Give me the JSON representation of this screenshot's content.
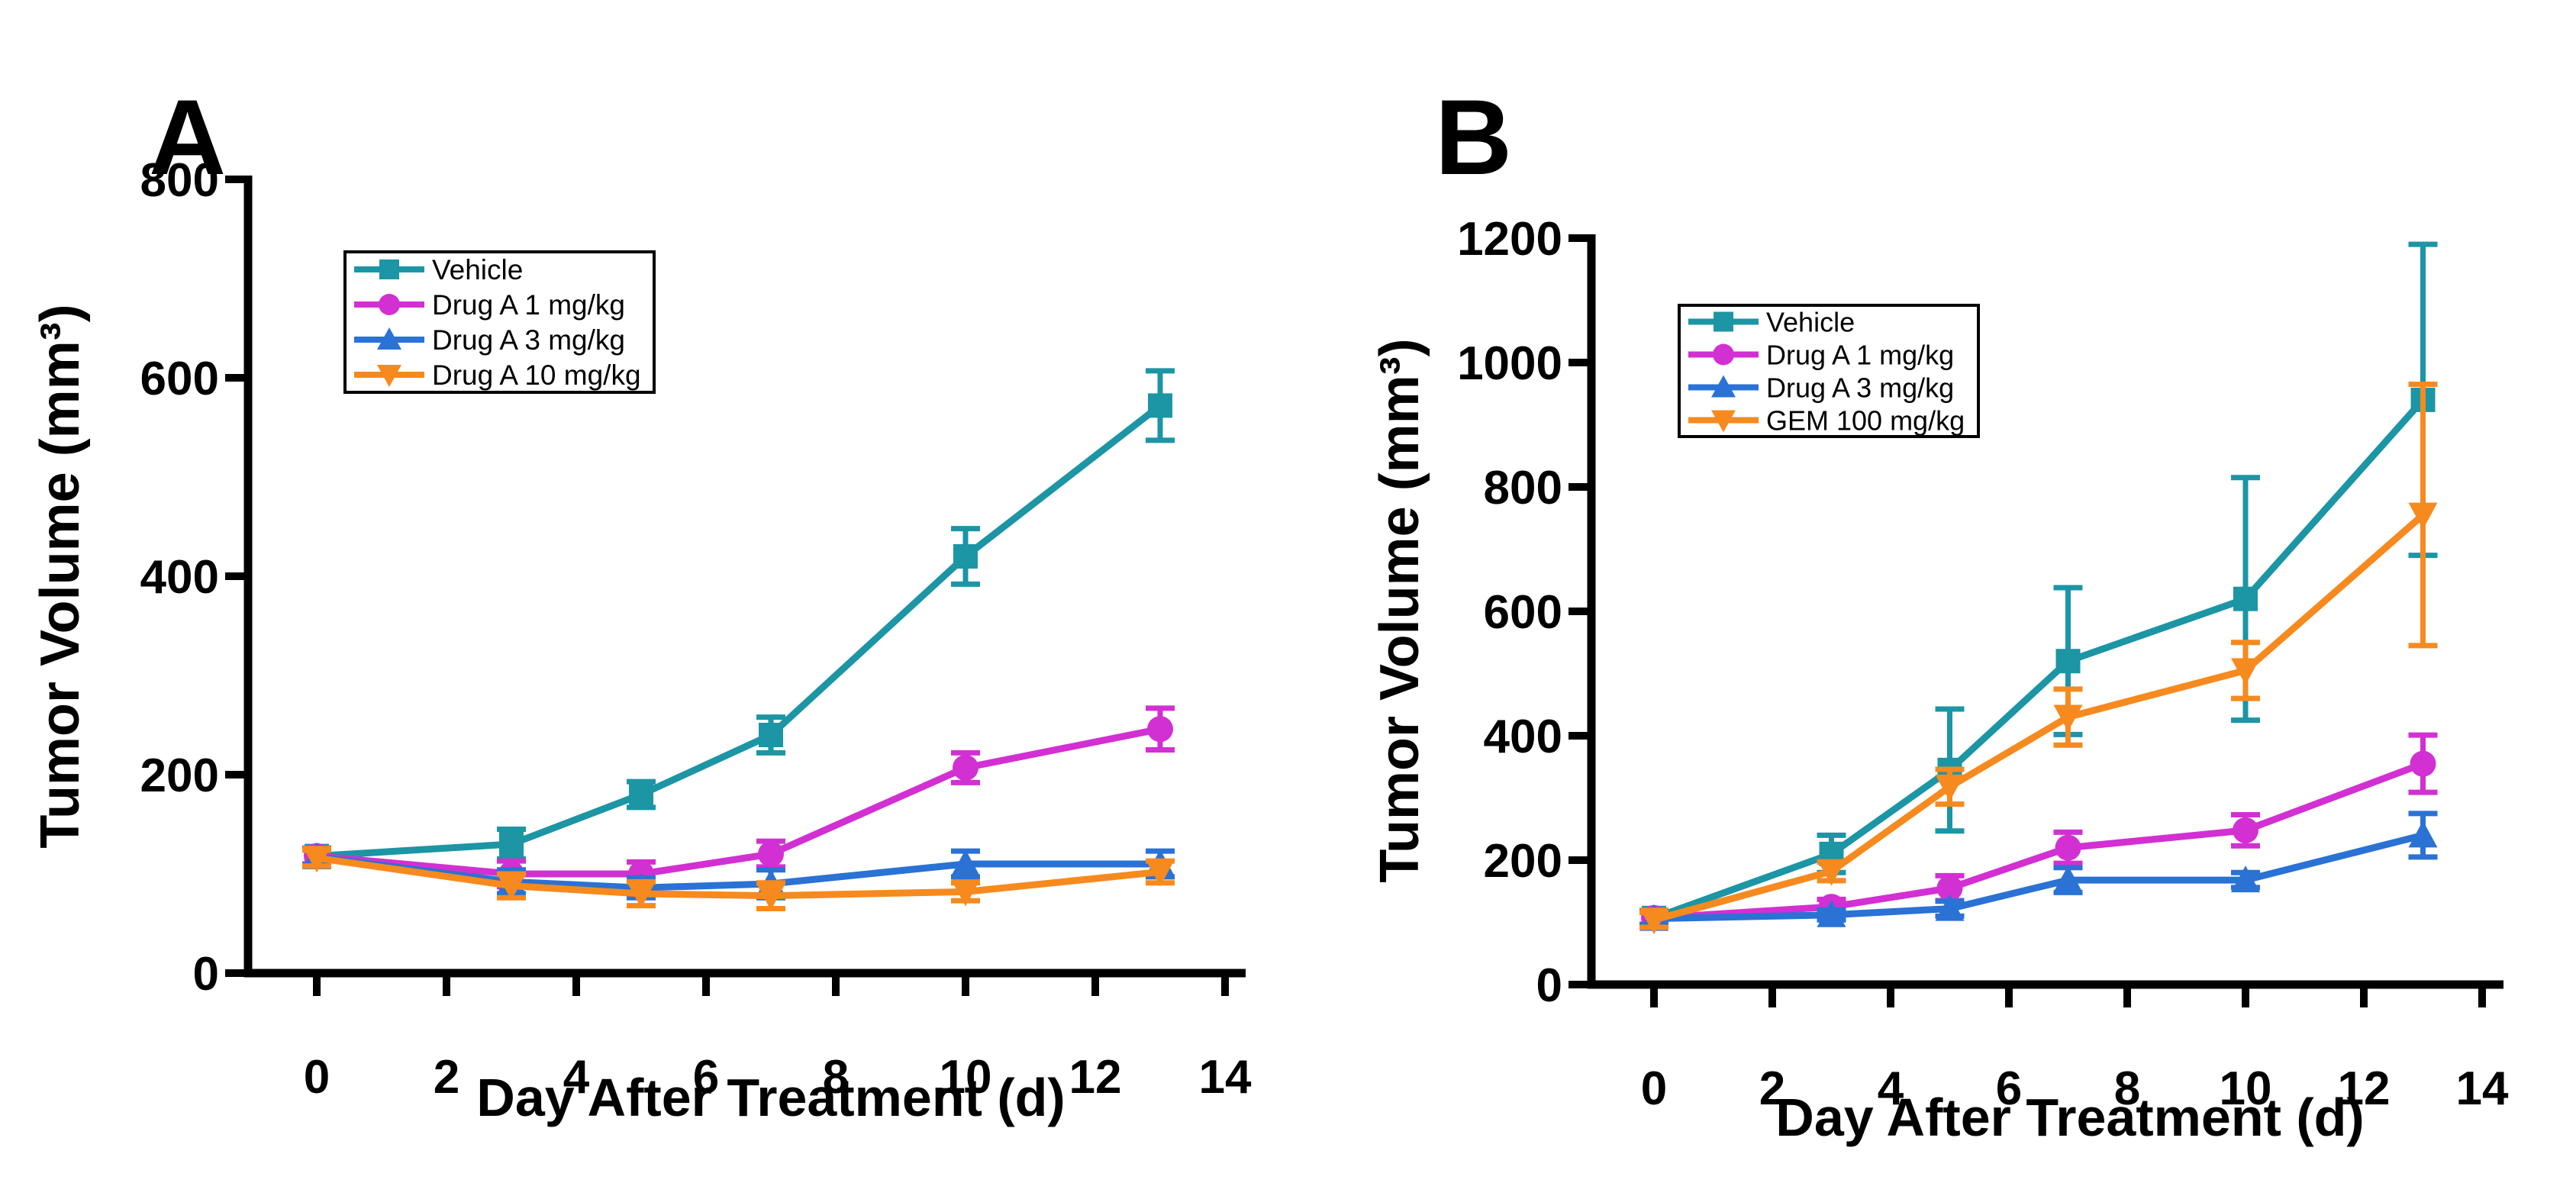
{
  "figure": {
    "background": "#ffffff",
    "description": "Two-panel tumor growth line chart"
  },
  "chart_data": [
    {
      "type": "line",
      "panel_label": "A",
      "xlabel": "Day After Treatment (d)",
      "ylabel": "Tumor Volume (mm³)",
      "x": [
        0,
        3,
        5,
        7,
        10,
        13
      ],
      "xticks": [
        0,
        2,
        4,
        6,
        8,
        10,
        12,
        14
      ],
      "xlim": [
        0,
        14
      ],
      "ylim": [
        0,
        800
      ],
      "yticks": [
        0,
        200,
        400,
        600,
        800
      ],
      "grid": false,
      "legend_position": "upper-left-inside",
      "series": [
        {
          "name": "Vehicle",
          "color": "#1C95A5",
          "marker": "square",
          "values": [
            118,
            130,
            180,
            240,
            420,
            572
          ],
          "errors": [
            8,
            15,
            13,
            18,
            28,
            35
          ]
        },
        {
          "name": "Drug A 1 mg/kg",
          "color": "#D230D2",
          "marker": "circle",
          "values": [
            118,
            100,
            100,
            120,
            207,
            246
          ],
          "errors": [
            8,
            13,
            12,
            13,
            15,
            21
          ]
        },
        {
          "name": "Drug A 3 mg/kg",
          "color": "#2A72D4",
          "marker": "triangle-up",
          "values": [
            117,
            92,
            86,
            90,
            110,
            110
          ],
          "errors": [
            8,
            12,
            10,
            14,
            13,
            13
          ]
        },
        {
          "name": "Drug A 10 mg/kg",
          "color": "#F68A1F",
          "marker": "triangle-down",
          "values": [
            116,
            88,
            80,
            78,
            82,
            102
          ],
          "errors": [
            8,
            12,
            12,
            13,
            9,
            11
          ]
        }
      ]
    },
    {
      "type": "line",
      "panel_label": "B",
      "xlabel": "Day After Treatment (d)",
      "ylabel": "Tumor Volume (mm³)",
      "x": [
        0,
        3,
        5,
        7,
        10,
        13
      ],
      "xticks": [
        0,
        2,
        4,
        6,
        8,
        10,
        12,
        14
      ],
      "xlim": [
        0,
        14
      ],
      "ylim": [
        0,
        1200
      ],
      "yticks": [
        0,
        200,
        400,
        600,
        800,
        1000,
        1200
      ],
      "grid": false,
      "legend_position": "upper-left-inside",
      "series": [
        {
          "name": "Vehicle",
          "color": "#1C95A5",
          "marker": "square",
          "values": [
            107,
            210,
            345,
            520,
            620,
            940
          ],
          "errors": [
            12,
            30,
            98,
            118,
            195,
            250
          ]
        },
        {
          "name": "Drug A 1 mg/kg",
          "color": "#D230D2",
          "marker": "circle",
          "values": [
            107,
            125,
            155,
            220,
            248,
            355
          ],
          "errors": [
            10,
            12,
            20,
            25,
            25,
            46
          ]
        },
        {
          "name": "Drug A 3 mg/kg",
          "color": "#2A72D4",
          "marker": "triangle-up",
          "values": [
            106,
            112,
            122,
            168,
            168,
            240
          ],
          "errors": [
            10,
            8,
            12,
            20,
            12,
            35
          ]
        },
        {
          "name": "GEM 100 mg/kg",
          "color": "#F68A1F",
          "marker": "triangle-down",
          "values": [
            104,
            182,
            318,
            430,
            505,
            755
          ],
          "errors": [
            12,
            15,
            28,
            45,
            45,
            210
          ]
        }
      ]
    }
  ]
}
